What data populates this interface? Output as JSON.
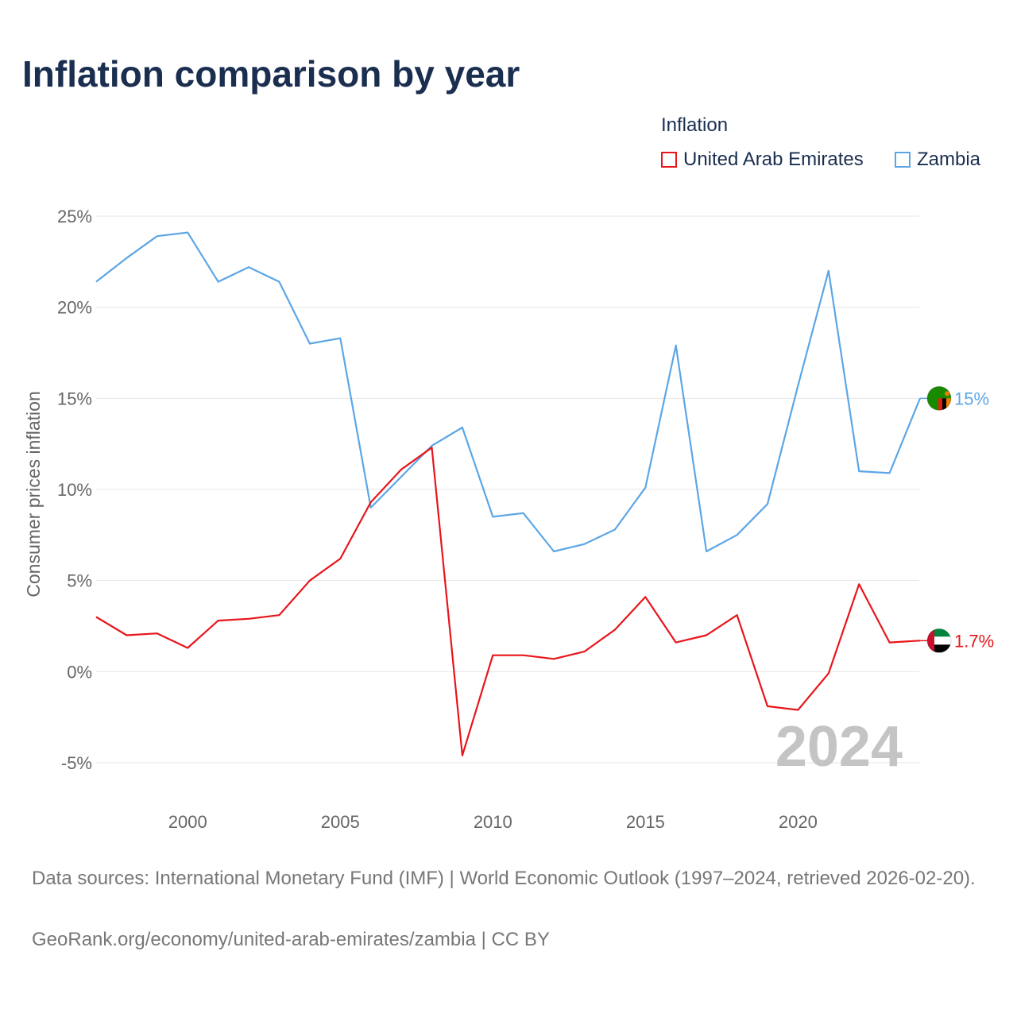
{
  "title": "Inflation comparison by year",
  "footer": {
    "sources": "Data sources: International Monetary Fund (IMF) | World Economic Outlook (1997–2024, retrieved 2026-02-20).",
    "credit": "GeoRank.org/economy/united-arab-emirates/zambia | CC BY"
  },
  "chart_data": {
    "type": "line",
    "title": "Inflation comparison by year",
    "xlabel": "",
    "ylabel": "Consumer prices inflation",
    "legend_title": "Inflation",
    "legend_position": "top-right",
    "year_watermark": "2024",
    "x": [
      1997,
      1998,
      1999,
      2000,
      2001,
      2002,
      2003,
      2004,
      2005,
      2006,
      2007,
      2008,
      2009,
      2010,
      2011,
      2012,
      2013,
      2014,
      2015,
      2016,
      2017,
      2018,
      2019,
      2020,
      2021,
      2022,
      2023,
      2024
    ],
    "xlim": [
      1997,
      2024
    ],
    "ylim": [
      -5,
      25
    ],
    "x_ticks": [
      2000,
      2005,
      2010,
      2015,
      2020
    ],
    "y_ticks": [
      -5,
      0,
      5,
      10,
      15,
      20,
      25
    ],
    "y_tick_labels": [
      "-5%",
      "0%",
      "5%",
      "10%",
      "15%",
      "20%",
      "25%"
    ],
    "grid": true,
    "series": [
      {
        "name": "United Arab Emirates",
        "color": "#e8151b",
        "end_label": "1.7%",
        "flag_icon": "uae-flag-icon",
        "values": [
          3.0,
          2.0,
          2.1,
          1.3,
          2.8,
          2.9,
          3.1,
          5.0,
          6.2,
          9.3,
          11.1,
          12.3,
          -4.6,
          0.9,
          0.9,
          0.7,
          1.1,
          2.3,
          4.1,
          1.6,
          2.0,
          3.1,
          -1.9,
          -2.1,
          -0.1,
          4.8,
          1.6,
          1.7
        ]
      },
      {
        "name": "Zambia",
        "color": "#5ca6e6",
        "end_label": "15%",
        "flag_icon": "zambia-flag-icon",
        "values": [
          21.4,
          22.7,
          23.9,
          24.1,
          21.4,
          22.2,
          21.4,
          18.0,
          18.3,
          9.0,
          10.7,
          12.4,
          13.4,
          8.5,
          8.7,
          6.6,
          7.0,
          7.8,
          10.1,
          17.9,
          6.6,
          7.5,
          9.2,
          15.7,
          22.0,
          11.0,
          10.9,
          15.0
        ]
      }
    ]
  }
}
